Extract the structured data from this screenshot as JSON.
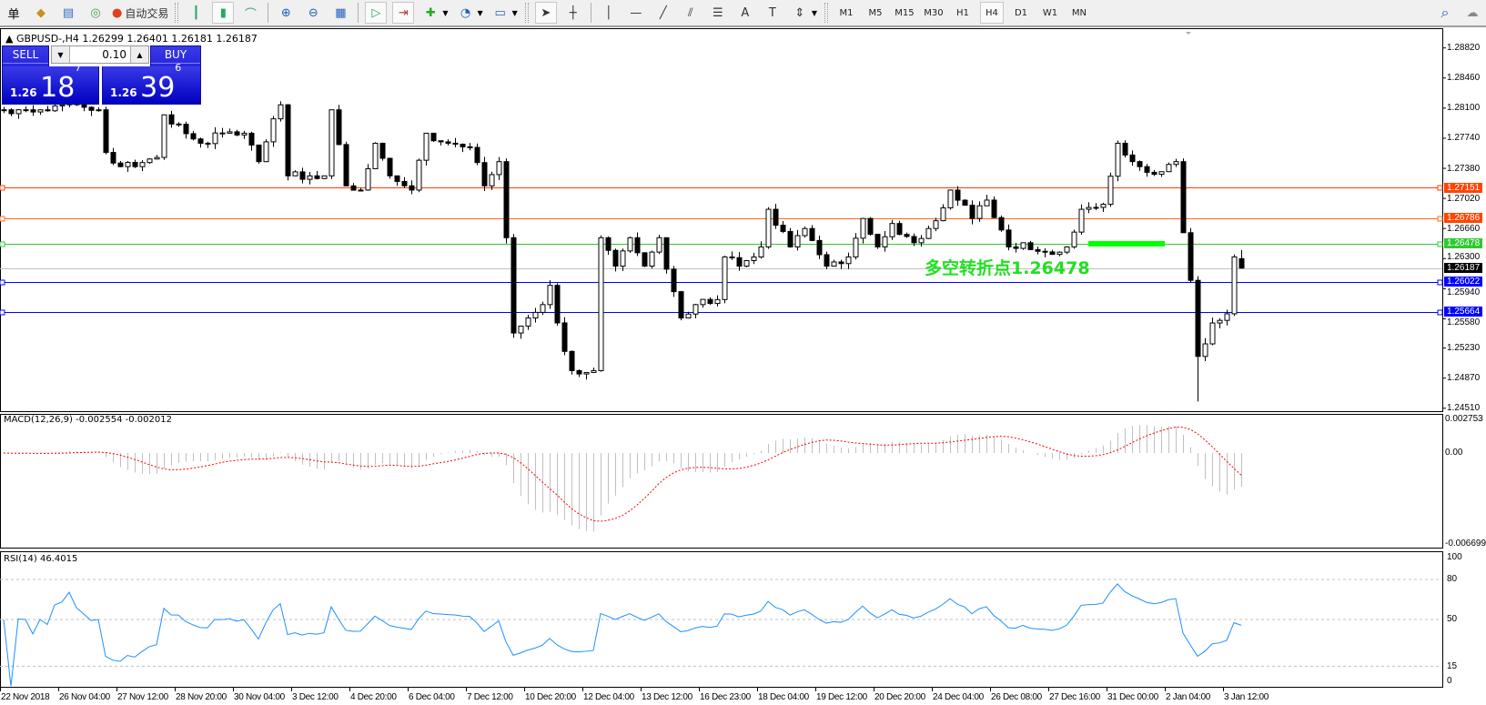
{
  "toolbar": {
    "left_items": [
      {
        "icon": "menu-char-icon",
        "glyph": "单"
      },
      {
        "icon": "pencil-eraser-icon",
        "glyph": "◆"
      },
      {
        "icon": "market-watch-icon",
        "glyph": "▤"
      },
      {
        "icon": "signal-icon",
        "glyph": "◎"
      }
    ],
    "auto_trading_label": "自动交易",
    "chart_tools": [
      {
        "icon": "bar-chart-icon",
        "glyph": "┃"
      },
      {
        "icon": "candlestick-icon",
        "glyph": "▮",
        "active": true
      },
      {
        "icon": "line-chart-icon",
        "glyph": "⌒"
      },
      {
        "icon": "zoom-in-icon",
        "glyph": "⊕"
      },
      {
        "icon": "zoom-out-icon",
        "glyph": "⊖"
      },
      {
        "icon": "tile-windows-icon",
        "glyph": "▦"
      },
      {
        "icon": "auto-scroll-icon",
        "glyph": "▷",
        "active": true
      },
      {
        "icon": "chart-shift-icon",
        "glyph": "⇥",
        "active": true
      },
      {
        "icon": "indicators-icon",
        "glyph": "✚"
      },
      {
        "icon": "periods-clock-icon",
        "glyph": "◔"
      },
      {
        "icon": "templates-icon",
        "glyph": "▭"
      }
    ],
    "draw_tools": [
      {
        "icon": "cursor-icon",
        "glyph": "➤",
        "active": true
      },
      {
        "icon": "crosshair-icon",
        "glyph": "┼"
      },
      {
        "icon": "vertical-line-icon",
        "glyph": "│"
      },
      {
        "icon": "horizontal-line-icon",
        "glyph": "—"
      },
      {
        "icon": "trendline-icon",
        "glyph": "╱"
      },
      {
        "icon": "equidistant-channel-icon",
        "glyph": "⫽"
      },
      {
        "icon": "fibonacci-icon",
        "glyph": "☰"
      },
      {
        "icon": "text-icon",
        "glyph": "A"
      },
      {
        "icon": "text-label-icon",
        "glyph": "T"
      },
      {
        "icon": "arrows-icon",
        "glyph": "⇕"
      }
    ],
    "timeframes": [
      "M1",
      "M5",
      "M15",
      "M30",
      "H1",
      "H4",
      "D1",
      "W1",
      "MN"
    ],
    "active_timeframe": "H4"
  },
  "chart": {
    "header": "GBPUSD-,H4  1.26299 1.26401 1.26181 1.26187",
    "trade": {
      "sell_label": "SELL",
      "buy_label": "BUY",
      "lot": "0.10",
      "sell_big": "1.26",
      "sell_mid": "18",
      "sell_sup": "7",
      "buy_big": "1.26",
      "buy_mid": "39",
      "buy_sup": "6"
    },
    "annotation": "多空转折点1.26478",
    "colors": {
      "annotation": "#20e020",
      "bid_line": "#c0c0c0",
      "red_line": "#ff3c00",
      "green_line": "#32c832",
      "blue_line": "#0000ff"
    },
    "price_ticks": [
      "1.28820",
      "1.28460",
      "1.28100",
      "1.27740",
      "1.27380",
      "1.27020",
      "1.26660",
      "1.26300",
      "1.25940",
      "1.25580",
      "1.25230",
      "1.24870",
      "1.24510"
    ],
    "levels": [
      {
        "price": "1.27151",
        "color": "#ff3c00",
        "label_bg": "#ff4500"
      },
      {
        "price": "1.26786",
        "color": "#ff6a20",
        "label_bg": "#ff4500"
      },
      {
        "price": "1.26478",
        "color": "#32c832",
        "label_bg": "#32c832"
      },
      {
        "price": "1.26187",
        "color": "#c0c0c0",
        "label_bg": "#000000"
      },
      {
        "price": "1.26022",
        "color": "#0000ff",
        "label_bg": "#0000ff"
      },
      {
        "price": "1.25664",
        "color": "#0000ff",
        "label_bg": "#0000ff"
      }
    ],
    "time_labels": [
      "22 Nov 2018",
      "26 Nov 04:00",
      "27 Nov 12:00",
      "28 Nov 20:00",
      "30 Nov 04:00",
      "3 Dec 12:00",
      "4 Dec 20:00",
      "6 Dec 04:00",
      "7 Dec 12:00",
      "10 Dec 20:00",
      "12 Dec 04:00",
      "13 Dec 12:00",
      "16 Dec 23:00",
      "18 Dec 04:00",
      "19 Dec 12:00",
      "20 Dec 20:00",
      "24 Dec 04:00",
      "26 Dec 08:00",
      "27 Dec 16:00",
      "31 Dec 00:00",
      "2 Jan 04:00",
      "3 Jan 12:00"
    ],
    "close_path": [
      [
        0,
        1.2808
      ],
      [
        3,
        1.2808
      ],
      [
        5,
        1.2808
      ],
      [
        8,
        1.2814
      ],
      [
        10,
        1.2814
      ],
      [
        13,
        1.2808
      ],
      [
        14,
        1.2757
      ],
      [
        16,
        1.274
      ],
      [
        18,
        1.274
      ],
      [
        21,
        1.2751
      ],
      [
        22,
        1.2802
      ],
      [
        23,
        1.2791
      ],
      [
        27,
        1.2768
      ],
      [
        30,
        1.278
      ],
      [
        33,
        1.278
      ],
      [
        35,
        1.2746
      ],
      [
        38,
        1.2814
      ],
      [
        39,
        1.2729
      ],
      [
        42,
        1.2729
      ],
      [
        44,
        1.2729
      ],
      [
        45,
        1.2808
      ],
      [
        47,
        1.2717
      ],
      [
        49,
        1.2712
      ],
      [
        51,
        1.2768
      ],
      [
        53,
        1.2729
      ],
      [
        56,
        1.2712
      ],
      [
        58,
        1.278
      ],
      [
        61,
        1.2768
      ],
      [
        64,
        1.2763
      ],
      [
        66,
        1.2717
      ],
      [
        68,
        1.2746
      ],
      [
        69,
        1.2655
      ],
      [
        70,
        1.2541
      ],
      [
        72,
        1.2559
      ],
      [
        74,
        1.2575
      ],
      [
        75,
        1.2598
      ],
      [
        77,
        1.2519
      ],
      [
        78,
        1.2496
      ],
      [
        81,
        1.2496
      ],
      [
        82,
        1.2655
      ],
      [
        84,
        1.2621
      ],
      [
        86,
        1.2655
      ],
      [
        88,
        1.2621
      ],
      [
        90,
        1.2655
      ],
      [
        93,
        1.2559
      ],
      [
        95,
        1.2575
      ],
      [
        98,
        1.2581
      ],
      [
        99,
        1.2632
      ],
      [
        101,
        1.2621
      ],
      [
        104,
        1.2644
      ],
      [
        105,
        1.2689
      ],
      [
        108,
        1.2644
      ],
      [
        110,
        1.2666
      ],
      [
        113,
        1.2621
      ],
      [
        116,
        1.2632
      ],
      [
        118,
        1.2678
      ],
      [
        120,
        1.2644
      ],
      [
        122,
        1.2672
      ],
      [
        125,
        1.2649
      ],
      [
        127,
        1.2666
      ],
      [
        130,
        1.2712
      ],
      [
        133,
        1.2678
      ],
      [
        135,
        1.27
      ],
      [
        138,
        1.2644
      ],
      [
        140,
        1.2649
      ],
      [
        143,
        1.2638
      ],
      [
        146,
        1.2644
      ],
      [
        148,
        1.2689
      ],
      [
        151,
        1.2695
      ],
      [
        153,
        1.2768
      ],
      [
        156,
        1.274
      ],
      [
        159,
        1.2734
      ],
      [
        161,
        1.2746
      ],
      [
        162,
        1.2661
      ],
      [
        163,
        1.2604
      ],
      [
        164,
        1.2513,
        1.2459
      ],
      [
        166,
        1.2553
      ],
      [
        168,
        1.2564
      ],
      [
        169,
        1.2632
      ],
      [
        170,
        1.26187
      ]
    ],
    "last_bar": {
      "open": 1.26299,
      "high": 1.26401,
      "low": 1.26181,
      "close": 1.26187
    }
  },
  "macd": {
    "label": "MACD(12,26,9) -0.002554 -0.002012",
    "ticks": [
      "0.002753",
      "0.00",
      "-0.006699"
    ]
  },
  "rsi": {
    "label": "RSI(14) 46.4015",
    "ticks": [
      "100",
      "80",
      "50",
      "15",
      "0"
    ]
  }
}
